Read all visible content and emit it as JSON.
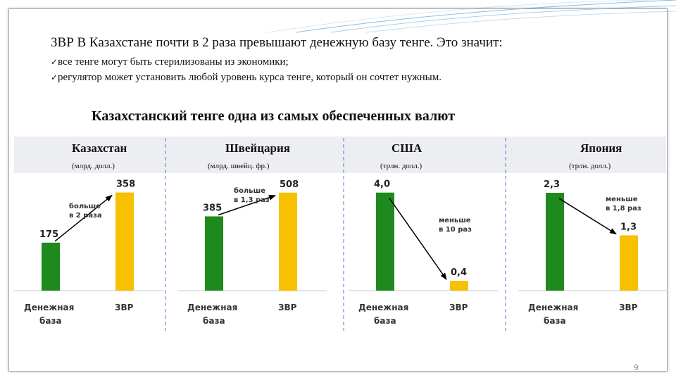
{
  "headline": "ЗВР В Казахстане почти в 2 раза превышают денежную базу тенге. Это значит:",
  "bullets": [
    "все тенге могут быть стерилизованы из экономики;",
    "регулятор может установить любой уровень курса тенге, который он сочтет нужным."
  ],
  "bullet_icon": "check-icon",
  "subtitle": "Казахстанский тенге одна из самых обеспеченных валют",
  "colors": {
    "base_bar": "#1e8a1e",
    "reserve_bar": "#f7c000",
    "accent_lines": "#7fb3d5"
  },
  "chart_data": [
    {
      "type": "bar",
      "title": "Казахстан",
      "unit": "(млрд. долл.)",
      "categories": [
        "Денежная база",
        "ЗВР"
      ],
      "values": [
        175,
        358
      ],
      "value_labels": [
        "175",
        "358"
      ],
      "ylim": [
        0,
        380
      ],
      "annotation": [
        "больше",
        "в 2 раза"
      ]
    },
    {
      "type": "bar",
      "title": "Швейцария",
      "unit": "(млрд. швейц. фр.)",
      "categories": [
        "Денежная база",
        "ЗВР"
      ],
      "values": [
        385,
        508
      ],
      "value_labels": [
        "385",
        "508"
      ],
      "ylim": [
        0,
        540
      ],
      "annotation": [
        "больше",
        "в 1,3 раз"
      ]
    },
    {
      "type": "bar",
      "title": "США",
      "unit": "(трлн. долл.)",
      "categories": [
        "Денежная база",
        "ЗВР"
      ],
      "values": [
        4.0,
        0.4
      ],
      "value_labels": [
        "4,0",
        "0,4"
      ],
      "ylim": [
        0,
        4.25
      ],
      "annotation": [
        "меньше",
        "в 10 раз"
      ]
    },
    {
      "type": "bar",
      "title": "Япония",
      "unit": "(трлн. долл.)",
      "categories": [
        "Денежная база",
        "ЗВР"
      ],
      "values": [
        2.3,
        1.3
      ],
      "value_labels": [
        "2,3",
        "1,3"
      ],
      "ylim": [
        0,
        2.45
      ],
      "annotation": [
        "меньше",
        "в 1,8 раз"
      ]
    }
  ],
  "page_number": "9"
}
